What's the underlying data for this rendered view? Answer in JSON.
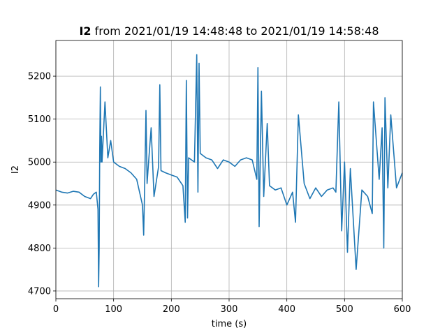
{
  "chart_data": {
    "type": "line",
    "title": {
      "variable": "I2",
      "rest": " from 2021/01/19 14:48:48 to 2021/01/19 14:58:48"
    },
    "xlabel": "time (s)",
    "ylabel": "I2",
    "xlim": [
      0,
      600
    ],
    "ylim": [
      4682,
      5283
    ],
    "x_ticks": [
      0,
      100,
      200,
      300,
      400,
      500,
      600
    ],
    "y_ticks": [
      4700,
      4800,
      4900,
      5000,
      5100,
      5200
    ],
    "grid": true,
    "series": [
      {
        "color": "#1f77b4",
        "x": [
          0,
          10,
          20,
          30,
          40,
          50,
          60,
          65,
          70,
          73,
          74,
          75,
          76,
          77,
          78,
          79,
          80,
          85,
          90,
          95,
          100,
          110,
          120,
          130,
          140,
          150,
          152,
          154,
          156,
          158,
          160,
          165,
          170,
          178,
          180,
          182,
          190,
          200,
          210,
          220,
          224,
          226,
          228,
          230,
          240,
          244,
          246,
          248,
          250,
          260,
          270,
          280,
          290,
          300,
          310,
          320,
          330,
          340,
          348,
          350,
          352,
          356,
          360,
          366,
          370,
          380,
          390,
          400,
          410,
          415,
          420,
          430,
          440,
          450,
          460,
          470,
          480,
          485,
          490,
          495,
          500,
          505,
          510,
          520,
          530,
          540,
          548,
          550,
          560,
          565,
          568,
          570,
          575,
          580,
          590,
          600
        ],
        "y": [
          4935,
          4930,
          4928,
          4932,
          4930,
          4920,
          4915,
          4925,
          4930,
          4890,
          4710,
          4800,
          5030,
          5175,
          5000,
          5060,
          5000,
          5140,
          5010,
          5050,
          5000,
          4990,
          4985,
          4975,
          4960,
          4900,
          4830,
          4960,
          5120,
          4950,
          4990,
          5080,
          4920,
          4990,
          5180,
          4980,
          4975,
          4970,
          4965,
          4945,
          4860,
          5190,
          4870,
          5010,
          5000,
          5250,
          4930,
          5230,
          5020,
          5010,
          5005,
          4985,
          5005,
          5000,
          4990,
          5005,
          5010,
          5005,
          4960,
          5220,
          4850,
          5165,
          4920,
          5090,
          4945,
          4935,
          4940,
          4900,
          4930,
          4860,
          5110,
          4950,
          4915,
          4940,
          4920,
          4935,
          4940,
          4930,
          5140,
          4840,
          5000,
          4790,
          4985,
          4750,
          4935,
          4920,
          4880,
          5140,
          4960,
          5080,
          4800,
          5150,
          4940,
          5110,
          4940,
          4975
        ]
      }
    ]
  }
}
